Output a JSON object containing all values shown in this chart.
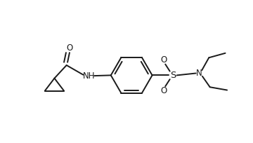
{
  "bg_color": "#ffffff",
  "line_color": "#1a1a1a",
  "line_width": 1.4,
  "font_size": 8.5,
  "figsize": [
    3.6,
    2.04
  ],
  "dpi": 100,
  "xlim": [
    0,
    10
  ],
  "ylim": [
    0,
    5.5
  ]
}
